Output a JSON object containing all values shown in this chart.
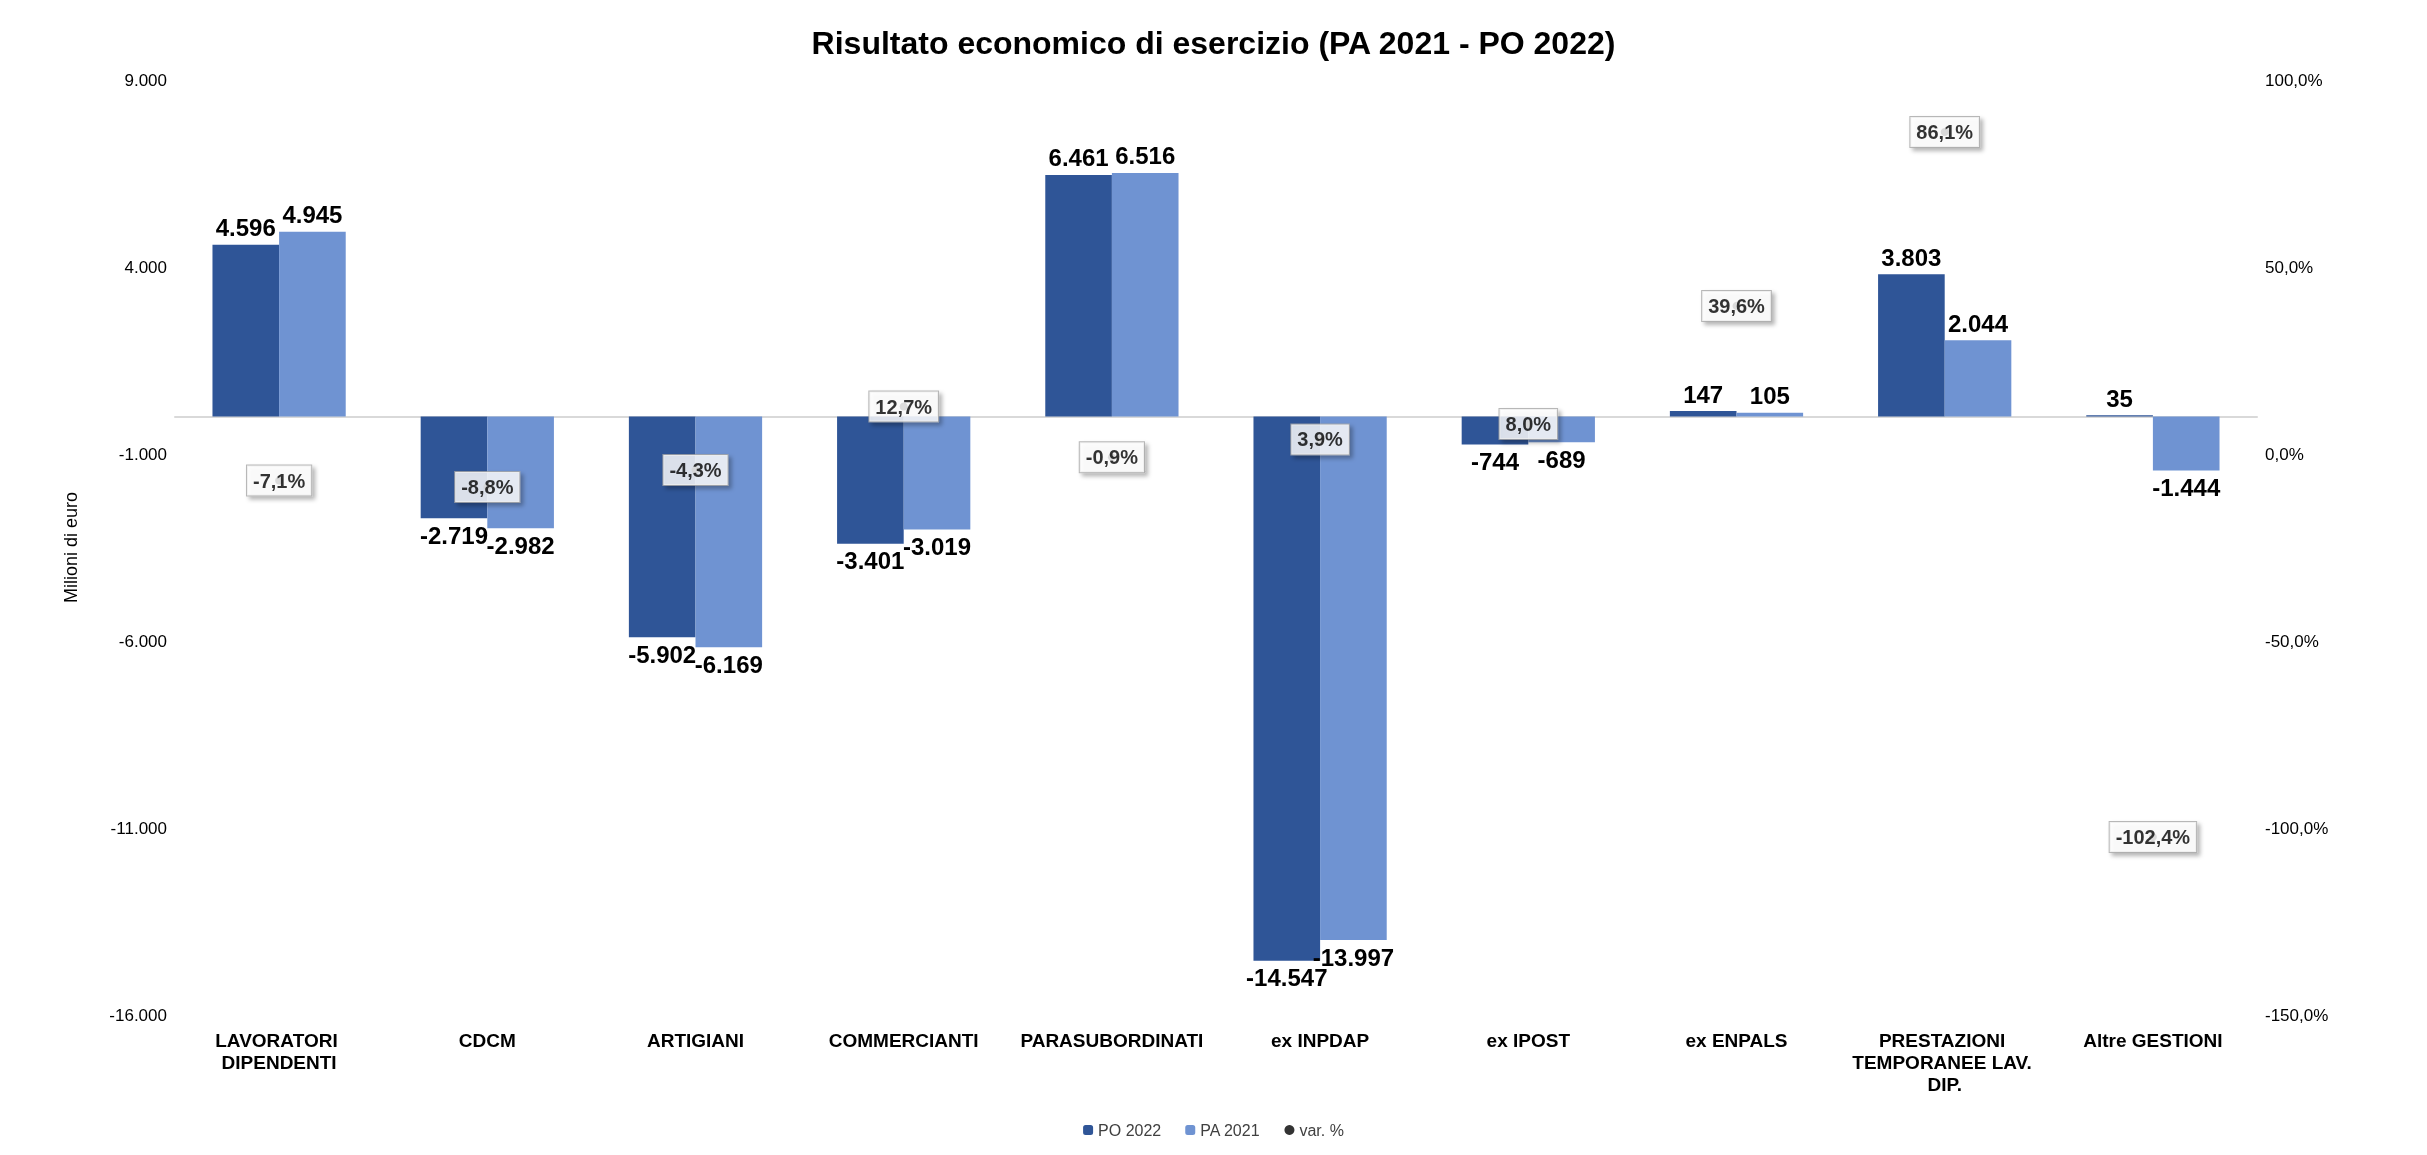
{
  "chart_data": {
    "type": "bar",
    "title": "Risultato economico di esercizio (PA 2021 - PO 2022)",
    "ylabel": "Milioni di euro",
    "categories": [
      "LAVORATORI DIPENDENTI",
      "CDCM",
      "ARTIGIANI",
      "COMMERCIANTI",
      "PARASUBORDINATI",
      "ex INPDAP",
      "ex IPOST",
      "ex ENPALS",
      "PRESTAZIONI TEMPORANEE LAV. DIP.",
      "Altre GESTIONI"
    ],
    "series": [
      {
        "name": "PO 2022",
        "color": "#2f5597",
        "values": [
          4596,
          -2719,
          -5902,
          -3401,
          6461,
          -14547,
          -744,
          147,
          3803,
          35
        ],
        "value_labels": [
          "4.596",
          "-2.719",
          "-5.902",
          "-3.401",
          "6.461",
          "-14.547",
          "-744",
          "147",
          "3.803",
          "35"
        ]
      },
      {
        "name": "PA 2021",
        "color": "#6f93d2",
        "values": [
          4945,
          -2982,
          -6169,
          -3019,
          6516,
          -13997,
          -689,
          105,
          2044,
          -1444
        ],
        "value_labels": [
          "4.945",
          "-2.982",
          "-6.169",
          "-3.019",
          "6.516",
          "-13.997",
          "-689",
          "105",
          "2.044",
          "-1.444"
        ]
      },
      {
        "name": "var. %",
        "type": "scatter",
        "axis": "y2",
        "values": [
          -7.1,
          -8.8,
          -4.3,
          12.7,
          -0.9,
          3.9,
          8.0,
          39.6,
          86.1,
          -102.4
        ],
        "value_labels": [
          "-7,1%",
          "-8,8%",
          "-4,3%",
          "12,7%",
          "-0,9%",
          "3,9%",
          "8,0%",
          "39,6%",
          "86,1%",
          "-102,4%"
        ]
      }
    ],
    "ylim": [
      -16000,
      9000
    ],
    "yticks": [
      {
        "value": -16000,
        "label": "-16.000"
      },
      {
        "value": -11000,
        "label": "-11.000"
      },
      {
        "value": -6000,
        "label": "-6.000"
      },
      {
        "value": -1000,
        "label": "-1.000"
      },
      {
        "value": 4000,
        "label": "4.000"
      },
      {
        "value": 9000,
        "label": "9.000"
      }
    ],
    "y2lim": [
      -150,
      100
    ],
    "y2ticks": [
      {
        "value": -150,
        "label": "-150,0%"
      },
      {
        "value": -100,
        "label": "-100,0%"
      },
      {
        "value": -50,
        "label": "-50,0%"
      },
      {
        "value": 0,
        "label": "0,0%"
      },
      {
        "value": 50,
        "label": "50,0%"
      },
      {
        "value": 100,
        "label": "100,0%"
      }
    ],
    "grid": false,
    "legend": "bottom"
  }
}
